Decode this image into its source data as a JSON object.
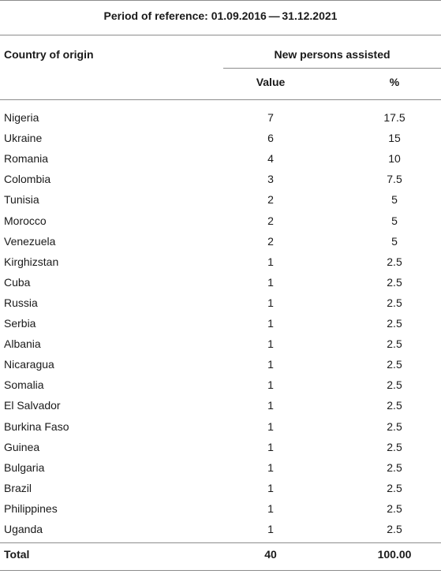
{
  "table": {
    "period_label": "Period of reference: 01.09.2016 — 31.12.2021",
    "headers": {
      "country": "Country of origin",
      "group": "New persons assisted",
      "value": "Value",
      "percent": "%"
    },
    "rows": [
      {
        "country": "Nigeria",
        "value": "7",
        "percent": "17.5"
      },
      {
        "country": "Ukraine",
        "value": "6",
        "percent": "15"
      },
      {
        "country": "Romania",
        "value": "4",
        "percent": "10"
      },
      {
        "country": "Colombia",
        "value": "3",
        "percent": "7.5"
      },
      {
        "country": "Tunisia",
        "value": "2",
        "percent": "5"
      },
      {
        "country": "Morocco",
        "value": "2",
        "percent": "5"
      },
      {
        "country": "Venezuela",
        "value": "2",
        "percent": "5"
      },
      {
        "country": "Kirghizstan",
        "value": "1",
        "percent": "2.5"
      },
      {
        "country": "Cuba",
        "value": "1",
        "percent": "2.5"
      },
      {
        "country": "Russia",
        "value": "1",
        "percent": "2.5"
      },
      {
        "country": "Serbia",
        "value": "1",
        "percent": "2.5"
      },
      {
        "country": "Albania",
        "value": "1",
        "percent": "2.5"
      },
      {
        "country": "Nicaragua",
        "value": "1",
        "percent": "2.5"
      },
      {
        "country": "Somalia",
        "value": "1",
        "percent": "2.5"
      },
      {
        "country": "El Salvador",
        "value": "1",
        "percent": "2.5"
      },
      {
        "country": "Burkina Faso",
        "value": "1",
        "percent": "2.5"
      },
      {
        "country": "Guinea",
        "value": "1",
        "percent": "2.5"
      },
      {
        "country": "Bulgaria",
        "value": "1",
        "percent": "2.5"
      },
      {
        "country": "Brazil",
        "value": "1",
        "percent": "2.5"
      },
      {
        "country": "Philippines",
        "value": "1",
        "percent": "2.5"
      },
      {
        "country": "Uganda",
        "value": "1",
        "percent": "2.5"
      }
    ],
    "total": {
      "label": "Total",
      "value": "40",
      "percent": "100.00"
    }
  }
}
